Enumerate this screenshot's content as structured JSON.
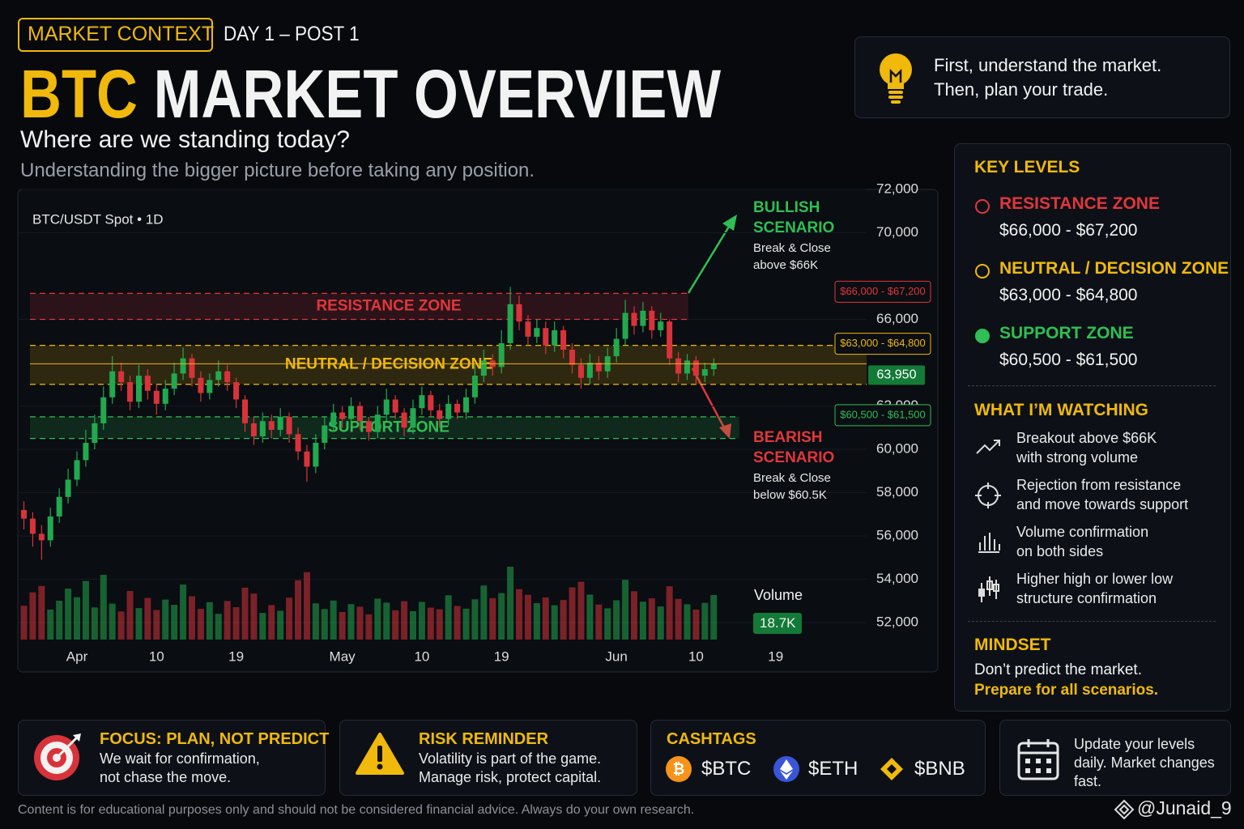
{
  "header": {
    "badge": "MARKET CONTEXT",
    "post": "DAY 1 – POST 1",
    "title_accent": "BTC",
    "title": "MARKET OVERVIEW",
    "subtitle": "Where are we standing today?",
    "tagline": "Understanding the bigger picture before taking any position."
  },
  "tip": {
    "lines": [
      "First, understand the market.",
      "Then, plan your trade."
    ]
  },
  "chart_data": {
    "type": "candlestick",
    "label": "BTC/USDT Spot • 1D",
    "categories": [
      null,
      null,
      null,
      null,
      null,
      null,
      "Apr",
      null,
      null,
      null,
      null,
      null,
      null,
      null,
      null,
      "10",
      null,
      null,
      null,
      null,
      null,
      null,
      null,
      null,
      "19",
      null,
      null,
      null,
      null,
      null,
      null,
      null,
      null,
      null,
      null,
      null,
      "May",
      null,
      null,
      null,
      null,
      null,
      null,
      null,
      null,
      "10",
      null,
      null,
      null,
      null,
      null,
      null,
      null,
      null,
      "19",
      null,
      null,
      null,
      null,
      null,
      null,
      null,
      null,
      null,
      null,
      null,
      null,
      "Jun",
      null,
      null,
      null,
      null,
      null,
      null,
      null,
      null,
      "10",
      null,
      null,
      null,
      null,
      null,
      null,
      null,
      null,
      "19"
    ],
    "open": [
      57200,
      56800,
      56100,
      55800,
      56900,
      57800,
      58600,
      59500,
      60300,
      61200,
      62400,
      63600,
      63100,
      62200,
      63400,
      62700,
      62100,
      62800,
      63500,
      64200,
      63300,
      62600,
      63200,
      63600,
      63100,
      62300,
      61200,
      60600,
      61300,
      60900,
      61500,
      60700,
      59900,
      59200,
      60300,
      61100,
      61700,
      61400,
      62000,
      61300,
      60800,
      61600,
      62300,
      61700,
      61000,
      61900,
      62500,
      61800,
      61400,
      62100,
      61700,
      62400,
      63400,
      64100,
      63800,
      64900,
      66700,
      65900,
      65200,
      65600,
      64800,
      65500,
      64600,
      63900,
      63300,
      64000,
      63600,
      64300,
      65100,
      66300,
      65700,
      66400,
      65500,
      65900,
      64200,
      63500,
      64100,
      63400,
      63700,
      null,
      null,
      null,
      null,
      null,
      null,
      null
    ],
    "high": [
      57600,
      57100,
      56500,
      57300,
      58200,
      59100,
      59900,
      60900,
      61600,
      62900,
      64300,
      64000,
      63400,
      63900,
      63700,
      63000,
      63200,
      64000,
      64700,
      64400,
      63600,
      63500,
      64100,
      63900,
      63300,
      62500,
      61500,
      61700,
      61600,
      61900,
      61700,
      61000,
      60200,
      60700,
      61500,
      62100,
      62000,
      62400,
      62200,
      61500,
      62000,
      62800,
      62500,
      61900,
      62300,
      62900,
      62700,
      62100,
      62500,
      62300,
      62800,
      63900,
      64600,
      64400,
      65500,
      67500,
      67100,
      66200,
      66000,
      65900,
      65900,
      65700,
      64900,
      64200,
      64400,
      64300,
      64700,
      65600,
      66900,
      66600,
      66800,
      66600,
      66300,
      66000,
      64500,
      64400,
      64300,
      64000,
      64200,
      null,
      null,
      null,
      null,
      null,
      null,
      null
    ],
    "low": [
      56300,
      55500,
      54900,
      55500,
      56600,
      57500,
      58300,
      59200,
      60000,
      60900,
      62100,
      62700,
      61800,
      61900,
      62300,
      61600,
      61800,
      62500,
      63200,
      62900,
      62200,
      62300,
      62900,
      62700,
      61900,
      60800,
      60200,
      60300,
      60500,
      60600,
      60300,
      59500,
      58500,
      58900,
      60000,
      60800,
      61000,
      61100,
      60900,
      60400,
      60500,
      61300,
      61400,
      60600,
      60700,
      61600,
      61500,
      61000,
      61100,
      61400,
      61400,
      62100,
      63100,
      63400,
      63500,
      64600,
      65500,
      64800,
      64900,
      64400,
      64500,
      64200,
      63500,
      62800,
      63000,
      63200,
      63300,
      64000,
      64800,
      65300,
      65400,
      65100,
      65200,
      63900,
      63100,
      63200,
      63000,
      63100,
      63400,
      null,
      null,
      null,
      null,
      null,
      null,
      null
    ],
    "close": [
      56800,
      56100,
      55800,
      56900,
      57800,
      58600,
      59500,
      60300,
      61200,
      62400,
      63600,
      63100,
      62200,
      63400,
      62700,
      62100,
      62800,
      63500,
      64200,
      63300,
      62600,
      63200,
      63600,
      63100,
      62300,
      61200,
      60600,
      61300,
      60900,
      61500,
      60700,
      59900,
      59200,
      60300,
      61100,
      61700,
      61400,
      62000,
      61300,
      60800,
      61600,
      62300,
      61700,
      61000,
      61900,
      62500,
      61800,
      61400,
      62100,
      61700,
      62400,
      63400,
      64100,
      63800,
      64900,
      66700,
      65900,
      65200,
      65600,
      64800,
      65500,
      64600,
      63900,
      63300,
      64000,
      63600,
      64300,
      65100,
      66300,
      65700,
      66400,
      65500,
      65900,
      64200,
      63500,
      64100,
      63400,
      63700,
      63950,
      null,
      null,
      null,
      null,
      null,
      null,
      null
    ],
    "up_color": "#22a94f",
    "down_color": "#d8333a",
    "last_price_label": "63,950",
    "ylim": [
      52000,
      72000
    ],
    "yticks": [
      {
        "value": 52000,
        "label": "52,000"
      },
      {
        "value": 54000,
        "label": "54,000"
      },
      {
        "value": 56000,
        "label": "56,000"
      },
      {
        "value": 58000,
        "label": "58,000"
      },
      {
        "value": 60000,
        "label": "60,000"
      },
      {
        "value": 62000,
        "label": "62,000"
      },
      {
        "value": 66000,
        "label": "66,000"
      },
      {
        "value": 70000,
        "label": "70,000"
      },
      {
        "value": 72000,
        "label": "72,000"
      }
    ],
    "grid": true,
    "zones": [
      {
        "name": "RESISTANCE ZONE",
        "low": 66000,
        "high": 67200,
        "label": "$66,000 - $67,200",
        "color": "#e0373c"
      },
      {
        "name": "NEUTRAL / DECISION ZONE",
        "low": 63000,
        "high": 64800,
        "label": "$63,000 - $64,800",
        "color": "#f0b90b"
      },
      {
        "name": "SUPPORT ZONE",
        "low": 60500,
        "high": 61500,
        "label": "$60,500 - $61,500",
        "color": "#2fbf54"
      }
    ],
    "scenarios": [
      {
        "title": "BULLISH SCENARIO",
        "text": "Break & Close above $66K",
        "color": "#2fbf54"
      },
      {
        "title": "BEARISH SCENARIO",
        "text": "Break & Close below $60.5K",
        "color": "#e0373c"
      }
    ],
    "volume": {
      "name": "Volume",
      "last_value_label": "18.7K",
      "values": [
        14200,
        19800,
        22500,
        12600,
        16300,
        21400,
        17800,
        24600,
        13500,
        27200,
        15100,
        11800,
        20400,
        13200,
        17500,
        12400,
        16800,
        14600,
        23100,
        18200,
        12900,
        15700,
        10800,
        16200,
        13600,
        21800,
        19300,
        11200,
        14500,
        12100,
        17600,
        24900,
        28300,
        15200,
        12800,
        16400,
        11600,
        14900,
        13800,
        10600,
        17200,
        15500,
        12300,
        16100,
        11900,
        15800,
        13400,
        12700,
        18600,
        14100,
        13000,
        16900,
        22700,
        17400,
        19500,
        30600,
        21200,
        18800,
        15300,
        17700,
        14400,
        16600,
        21900,
        24300,
        18900,
        14700,
        13100,
        16500,
        25100,
        20300,
        15900,
        17300,
        13900,
        22400,
        17100,
        14800,
        12600,
        15400,
        18700,
        null,
        null,
        null,
        null,
        null,
        null,
        null
      ]
    }
  },
  "key_levels": {
    "title": "KEY LEVELS",
    "watching_title": "WHAT I’M WATCHING",
    "watching": [
      {
        "lines": [
          "Breakout above $66K",
          "with strong volume"
        ]
      },
      {
        "lines": [
          "Rejection from resistance",
          "and move towards support"
        ]
      },
      {
        "lines": [
          "Volume confirmation",
          "on both sides"
        ]
      },
      {
        "lines": [
          "Higher high or lower low",
          "structure confirmation"
        ]
      }
    ],
    "mindset_title": "MINDSET",
    "mindset": [
      "Don’t predict the market.",
      "Prepare for all scenarios."
    ]
  },
  "cards": [
    {
      "title": "FOCUS: PLAN, NOT PREDICT",
      "lines": [
        "We wait for confirmation,",
        "not chase the move."
      ]
    },
    {
      "title": "RISK REMINDER",
      "lines": [
        "Volatility is part of the game.",
        "Manage risk, protect capital."
      ]
    }
  ],
  "cashtags": {
    "title": "CASHTAGS",
    "tags": [
      "$BTC",
      "$ETH",
      "$BNB"
    ]
  },
  "update": {
    "lines": [
      "Update your levels",
      "daily. Market changes",
      "fast."
    ]
  },
  "disclaimer": "Content is for educational purposes only and should not be considered financial advice. Always do your own research.",
  "watermark": "@Junaid_9"
}
